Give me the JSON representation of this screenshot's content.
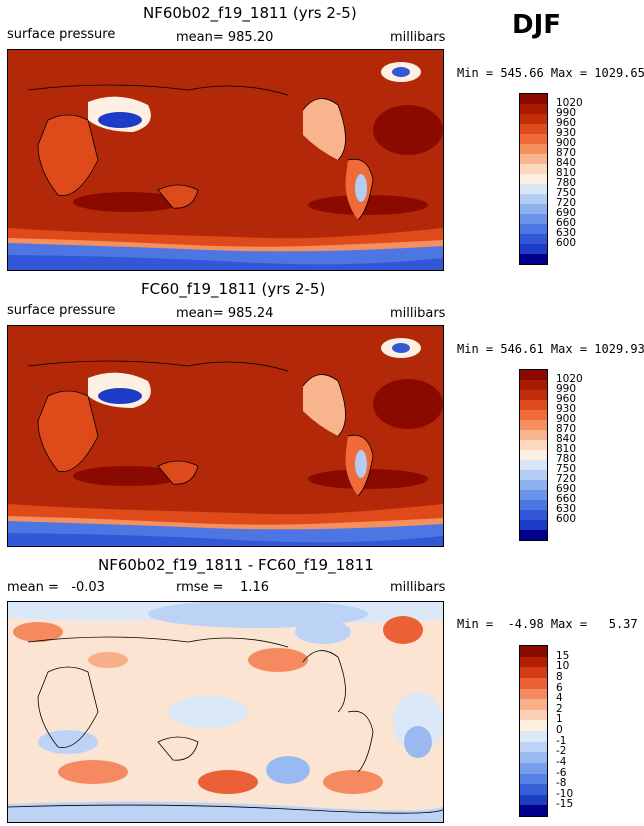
{
  "season": "DJF",
  "panels": [
    {
      "title": "NF60b02_f19_1811 (yrs 2-5)",
      "left_label": "surface pressure",
      "center_label": "mean= 985.20",
      "units": "millibars",
      "minmax": "Min = 545.66 Max = 1029.65",
      "colorbar": {
        "labels": [
          "1020",
          "990",
          "960",
          "930",
          "900",
          "870",
          "840",
          "810",
          "780",
          "750",
          "720",
          "690",
          "660",
          "630",
          "600"
        ],
        "colors": [
          "#8b0a00",
          "#a81b00",
          "#c32d0a",
          "#de4a1a",
          "#f06a3a",
          "#f5905e",
          "#f8b48d",
          "#fbd8be",
          "#fdf0e2",
          "#d8e6f8",
          "#b3cdf5",
          "#8eb2f0",
          "#6a94ea",
          "#4d76e3",
          "#3258d8",
          "#1c3bc6",
          "#00008b"
        ]
      },
      "background_color": "#b22808"
    },
    {
      "title": "FC60_f19_1811 (yrs 2-5)",
      "left_label": "surface pressure",
      "center_label": "mean= 985.24",
      "units": "millibars",
      "minmax": "Min = 546.61 Max = 1029.93",
      "colorbar": {
        "labels": [
          "1020",
          "990",
          "960",
          "930",
          "900",
          "870",
          "840",
          "810",
          "780",
          "750",
          "720",
          "690",
          "660",
          "630",
          "600"
        ],
        "colors": [
          "#8b0a00",
          "#a81b00",
          "#c32d0a",
          "#de4a1a",
          "#f06a3a",
          "#f5905e",
          "#f8b48d",
          "#fbd8be",
          "#fdf0e2",
          "#d8e6f8",
          "#b3cdf5",
          "#8eb2f0",
          "#6a94ea",
          "#4d76e3",
          "#3258d8",
          "#1c3bc6",
          "#00008b"
        ]
      },
      "background_color": "#b22808"
    },
    {
      "title": "NF60b02_f19_1811 - FC60_f19_1811",
      "left_label": "mean =   -0.03",
      "center_label": "rmse =    1.16",
      "units": "millibars",
      "minmax": "Min =  -4.98 Max =   5.37",
      "colorbar": {
        "labels": [
          "15",
          "10",
          "8",
          "6",
          "4",
          "2",
          "1",
          "0",
          "-1",
          "-2",
          "-4",
          "-6",
          "-8",
          "-10",
          "-15"
        ],
        "colors": [
          "#8b0a00",
          "#b21e00",
          "#d43a14",
          "#ec6038",
          "#f58a60",
          "#f8b08a",
          "#fbd2b8",
          "#fdeee0",
          "#dbe8f8",
          "#bcd3f5",
          "#9ab9f0",
          "#789deb",
          "#5680e4",
          "#3860d8",
          "#1f3fc3",
          "#00008b"
        ]
      },
      "background_color": "#fbe4d2"
    }
  ]
}
